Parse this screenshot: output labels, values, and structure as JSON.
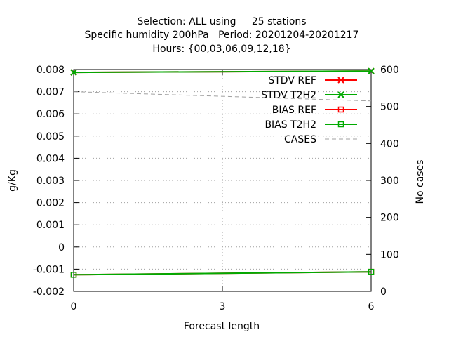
{
  "chart_data": {
    "type": "line",
    "title_lines": [
      "Selection: ALL using     25 stations",
      "Specific humidity 200hPa   Period: 20201204-20201217",
      "Hours: {00,03,06,09,12,18}"
    ],
    "xlabel": "Forecast length",
    "ylabel": "g/Kg",
    "y2label": "No cases",
    "xlim": [
      0,
      6
    ],
    "ylim": [
      -0.002,
      0.008
    ],
    "y2lim": [
      0,
      600
    ],
    "x_ticks": [
      0,
      3,
      6
    ],
    "y_ticks": [
      "-0.002",
      "-0.001",
      "0",
      "0.001",
      "0.002",
      "0.003",
      "0.004",
      "0.005",
      "0.006",
      "0.007",
      "0.008"
    ],
    "y2_ticks": [
      "0",
      "100",
      "200",
      "300",
      "400",
      "500",
      "600"
    ],
    "grid": true,
    "legend_position": "top-right",
    "x": [
      0,
      6
    ],
    "series": [
      {
        "name": "STDV REF",
        "axis": "y1",
        "values": [
          0.00787,
          0.00793
        ],
        "color": "#ff0000",
        "marker": "x",
        "dash": false
      },
      {
        "name": "STDV T2H2",
        "axis": "y1",
        "values": [
          0.00787,
          0.00793
        ],
        "color": "#00aa00",
        "marker": "x",
        "dash": false
      },
      {
        "name": "BIAS REF",
        "axis": "y1",
        "values": [
          -0.00125,
          -0.00112
        ],
        "color": "#ff0000",
        "marker": "square",
        "dash": false
      },
      {
        "name": "BIAS T2H2",
        "axis": "y1",
        "values": [
          -0.00125,
          -0.00112
        ],
        "color": "#00aa00",
        "marker": "square",
        "dash": false
      },
      {
        "name": "CASES",
        "axis": "y2",
        "values": [
          540,
          515
        ],
        "color": "#a0a0a0",
        "marker": "none",
        "dash": true
      }
    ]
  }
}
